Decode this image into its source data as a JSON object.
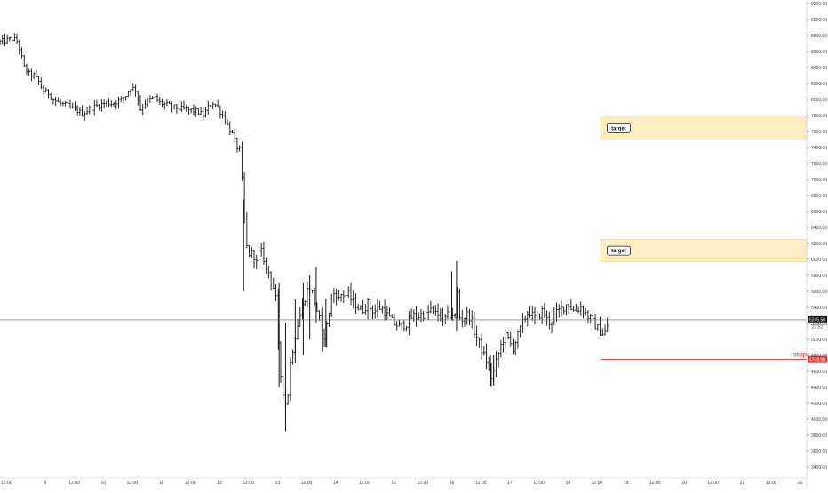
{
  "colors": {
    "bars": "#111111",
    "target_fill": "#fbeec3",
    "target_border": "#f0d68a",
    "stop_line": "#e53935",
    "grid": "#e6e6e6",
    "axis": "#555555",
    "price_line": "#666666"
  },
  "chart_data": {
    "type": "ohlc",
    "y_range": [
      3300,
      9200
    ],
    "x_range": [
      0,
      1000
    ],
    "y_ticks": [
      "9200.00",
      "9000.00",
      "8800.00",
      "8600.00",
      "8400.00",
      "8200.00",
      "8000.00",
      "7800.00",
      "7600.00",
      "7400.00",
      "7200.00",
      "7000.00",
      "6800.00",
      "6600.00",
      "6400.00",
      "6200.00",
      "6000.00",
      "5800.00",
      "5600.00",
      "5400.00",
      "5200.00",
      "5000.00",
      "4800.00",
      "4600.00",
      "4400.00",
      "4200.00",
      "4000.00",
      "3800.00",
      "3600.00",
      "3400.00"
    ],
    "x_ticks": [
      {
        "label": "12:00",
        "x": 8
      },
      {
        "label": "9",
        "x": 56
      },
      {
        "label": "12:00",
        "x": 92
      },
      {
        "label": "10",
        "x": 128
      },
      {
        "label": "12:00",
        "x": 164
      },
      {
        "label": "11",
        "x": 200
      },
      {
        "label": "12:00",
        "x": 236
      },
      {
        "label": "12",
        "x": 272
      },
      {
        "label": "12:00",
        "x": 308
      },
      {
        "label": "13",
        "x": 344
      },
      {
        "label": "12:00",
        "x": 380
      },
      {
        "label": "14",
        "x": 416
      },
      {
        "label": "12:00",
        "x": 452
      },
      {
        "label": "15",
        "x": 488
      },
      {
        "label": "12:00",
        "x": 524
      },
      {
        "label": "16",
        "x": 560
      },
      {
        "label": "12:00",
        "x": 596
      },
      {
        "label": "17",
        "x": 632
      },
      {
        "label": "12:00",
        "x": 668
      },
      {
        "label": "18",
        "x": 704
      },
      {
        "label": "12:00",
        "x": 740
      },
      {
        "label": "19",
        "x": 776
      },
      {
        "label": "12:00",
        "x": 812
      },
      {
        "label": "20",
        "x": 848
      },
      {
        "label": "12:00",
        "x": 884
      },
      {
        "label": "21",
        "x": 920
      },
      {
        "label": "12:00",
        "x": 956
      },
      {
        "label": "22",
        "x": 992
      }
    ],
    "price_path": [
      [
        0,
        8720
      ],
      [
        8,
        8740
      ],
      [
        16,
        8760
      ],
      [
        22,
        8720
      ],
      [
        26,
        8560
      ],
      [
        30,
        8400
      ],
      [
        36,
        8320
      ],
      [
        42,
        8300
      ],
      [
        48,
        8220
      ],
      [
        54,
        8100
      ],
      [
        60,
        8080
      ],
      [
        66,
        8000
      ],
      [
        72,
        7960
      ],
      [
        78,
        7940
      ],
      [
        84,
        7920
      ],
      [
        90,
        7880
      ],
      [
        96,
        7860
      ],
      [
        102,
        7820
      ],
      [
        108,
        7860
      ],
      [
        114,
        7900
      ],
      [
        120,
        7920
      ],
      [
        126,
        7940
      ],
      [
        132,
        7960
      ],
      [
        138,
        7950
      ],
      [
        144,
        7970
      ],
      [
        150,
        8000
      ],
      [
        156,
        8050
      ],
      [
        162,
        8150
      ],
      [
        168,
        8120
      ],
      [
        174,
        7880
      ],
      [
        180,
        7960
      ],
      [
        186,
        8000
      ],
      [
        192,
        8020
      ],
      [
        198,
        7960
      ],
      [
        204,
        7940
      ],
      [
        210,
        7920
      ],
      [
        216,
        7900
      ],
      [
        222,
        7890
      ],
      [
        228,
        7880
      ],
      [
        234,
        7870
      ],
      [
        240,
        7860
      ],
      [
        246,
        7840
      ],
      [
        252,
        7800
      ],
      [
        258,
        7900
      ],
      [
        264,
        7960
      ],
      [
        270,
        7900
      ],
      [
        276,
        7800
      ],
      [
        282,
        7680
      ],
      [
        288,
        7560
      ],
      [
        294,
        7400
      ],
      [
        298,
        7360
      ],
      [
        302,
        6600
      ],
      [
        306,
        6150
      ],
      [
        310,
        6050
      ],
      [
        314,
        6080
      ],
      [
        318,
        5950
      ],
      [
        322,
        6120
      ],
      [
        326,
        6050
      ],
      [
        330,
        5900
      ],
      [
        334,
        5820
      ],
      [
        338,
        5700
      ],
      [
        342,
        5500
      ],
      [
        346,
        4700
      ],
      [
        350,
        4400
      ],
      [
        354,
        4200
      ],
      [
        356,
        4200
      ],
      [
        360,
        4700
      ],
      [
        364,
        4950
      ],
      [
        368,
        5150
      ],
      [
        372,
        5300
      ],
      [
        376,
        5450
      ],
      [
        380,
        5600
      ],
      [
        384,
        5650
      ],
      [
        388,
        5550
      ],
      [
        392,
        5400
      ],
      [
        396,
        5250
      ],
      [
        400,
        5000
      ],
      [
        404,
        5100
      ],
      [
        408,
        5350
      ],
      [
        412,
        5550
      ],
      [
        416,
        5600
      ],
      [
        420,
        5500
      ],
      [
        424,
        5580
      ],
      [
        428,
        5550
      ],
      [
        432,
        5560
      ],
      [
        436,
        5480
      ],
      [
        440,
        5450
      ],
      [
        444,
        5400
      ],
      [
        448,
        5350
      ],
      [
        452,
        5400
      ],
      [
        456,
        5450
      ],
      [
        460,
        5380
      ],
      [
        464,
        5350
      ],
      [
        468,
        5380
      ],
      [
        472,
        5400
      ],
      [
        476,
        5360
      ],
      [
        480,
        5300
      ],
      [
        484,
        5250
      ],
      [
        488,
        5200
      ],
      [
        492,
        5180
      ],
      [
        496,
        5150
      ],
      [
        500,
        5180
      ],
      [
        504,
        5200
      ],
      [
        508,
        5250
      ],
      [
        512,
        5300
      ],
      [
        516,
        5280
      ],
      [
        520,
        5300
      ],
      [
        524,
        5320
      ],
      [
        528,
        5300
      ],
      [
        532,
        5350
      ],
      [
        536,
        5400
      ],
      [
        540,
        5320
      ],
      [
        544,
        5300
      ],
      [
        548,
        5280
      ],
      [
        552,
        5260
      ],
      [
        556,
        5300
      ],
      [
        560,
        5320
      ],
      [
        564,
        5280
      ],
      [
        566,
        5850
      ],
      [
        568,
        5300
      ],
      [
        572,
        5250
      ],
      [
        576,
        5280
      ],
      [
        580,
        5320
      ],
      [
        584,
        5250
      ],
      [
        588,
        5100
      ],
      [
        592,
        5000
      ],
      [
        596,
        4900
      ],
      [
        600,
        4800
      ],
      [
        604,
        4700
      ],
      [
        608,
        4500
      ],
      [
        612,
        4600
      ],
      [
        616,
        4750
      ],
      [
        620,
        4900
      ],
      [
        624,
        5000
      ],
      [
        628,
        5050
      ],
      [
        632,
        4950
      ],
      [
        636,
        4900
      ],
      [
        640,
        5000
      ],
      [
        644,
        5100
      ],
      [
        648,
        5200
      ],
      [
        652,
        5300
      ],
      [
        656,
        5350
      ],
      [
        660,
        5300
      ],
      [
        664,
        5250
      ],
      [
        668,
        5300
      ],
      [
        672,
        5350
      ],
      [
        676,
        5300
      ],
      [
        680,
        5200
      ],
      [
        684,
        5250
      ],
      [
        688,
        5300
      ],
      [
        692,
        5350
      ],
      [
        696,
        5380
      ],
      [
        700,
        5420
      ],
      [
        704,
        5450
      ],
      [
        708,
        5400
      ],
      [
        712,
        5350
      ],
      [
        716,
        5380
      ],
      [
        720,
        5400
      ],
      [
        724,
        5350
      ],
      [
        728,
        5300
      ],
      [
        732,
        5250
      ],
      [
        736,
        5200
      ],
      [
        740,
        5150
      ],
      [
        744,
        5100
      ],
      [
        748,
        5080
      ],
      [
        752,
        5100
      ],
      [
        755,
        5250
      ]
    ],
    "spikes": [
      {
        "x": 302,
        "high": 6750,
        "low": 5600
      },
      {
        "x": 346,
        "high": 5700,
        "low": 4400
      },
      {
        "x": 354,
        "high": 5200,
        "low": 3850
      },
      {
        "x": 366,
        "high": 5500,
        "low": 4700
      },
      {
        "x": 376,
        "high": 5700,
        "low": 4800
      },
      {
        "x": 384,
        "high": 5800,
        "low": 5000
      },
      {
        "x": 392,
        "high": 5900,
        "low": 5200
      },
      {
        "x": 400,
        "high": 5400,
        "low": 4850
      },
      {
        "x": 404,
        "high": 5500,
        "low": 4900
      },
      {
        "x": 566,
        "high": 5980,
        "low": 5100
      },
      {
        "x": 560,
        "high": 5850,
        "low": 5250
      },
      {
        "x": 608,
        "high": 4800,
        "low": 4420
      },
      {
        "x": 612,
        "high": 4800,
        "low": 4420
      }
    ],
    "current_price": 5245.5,
    "current_price_label": "5245.50",
    "countdown_label": "23:52",
    "stop_price": 4748.0,
    "stop_price_label": "4748.00",
    "stop_label": "stop",
    "stop_line_x_start": 745,
    "targets": [
      {
        "label": "target",
        "top": 7780,
        "bottom": 7500,
        "x_start": 745
      },
      {
        "label": "target",
        "top": 6250,
        "bottom": 5970,
        "x_start": 745
      }
    ]
  }
}
